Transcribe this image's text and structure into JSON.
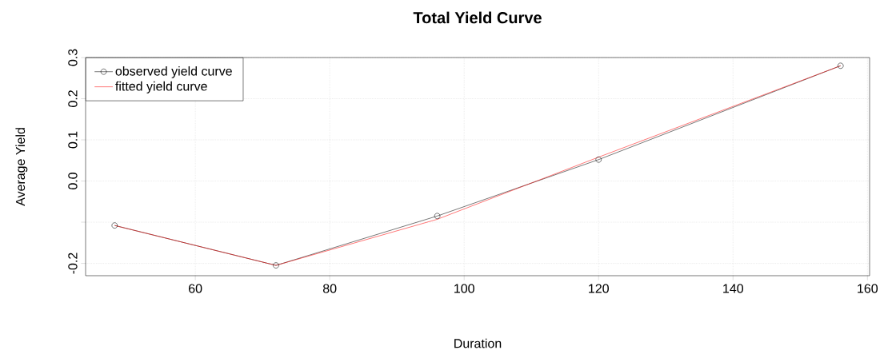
{
  "chart_data": {
    "type": "line",
    "title": "Total Yield Curve",
    "xlabel": "Duration",
    "ylabel": "Average Yield",
    "x": [
      48,
      72,
      96,
      120,
      156
    ],
    "series": [
      {
        "name": "observed yield curve",
        "color": "#000000",
        "marker": "circle",
        "values": [
          -0.108,
          -0.205,
          -0.085,
          0.052,
          0.28
        ]
      },
      {
        "name": "fitted yield curve",
        "color": "#ff0000",
        "marker": "none",
        "values": [
          -0.108,
          -0.205,
          -0.093,
          0.058,
          0.28
        ]
      }
    ],
    "xlim": [
      43.68,
      160.32
    ],
    "ylim": [
      -0.23,
      0.3
    ],
    "xticks": [
      60,
      80,
      100,
      120,
      140,
      160
    ],
    "yticks": [
      {
        "value": -0.2,
        "label": "-0.2"
      },
      {
        "value": -0.1,
        "label": null
      },
      {
        "value": 0.0,
        "label": "0.0"
      },
      {
        "value": 0.1,
        "label": "0.1"
      },
      {
        "value": 0.2,
        "label": "0.2"
      },
      {
        "value": 0.3,
        "label": "0.3"
      }
    ],
    "grid": true,
    "legend": "top left"
  }
}
